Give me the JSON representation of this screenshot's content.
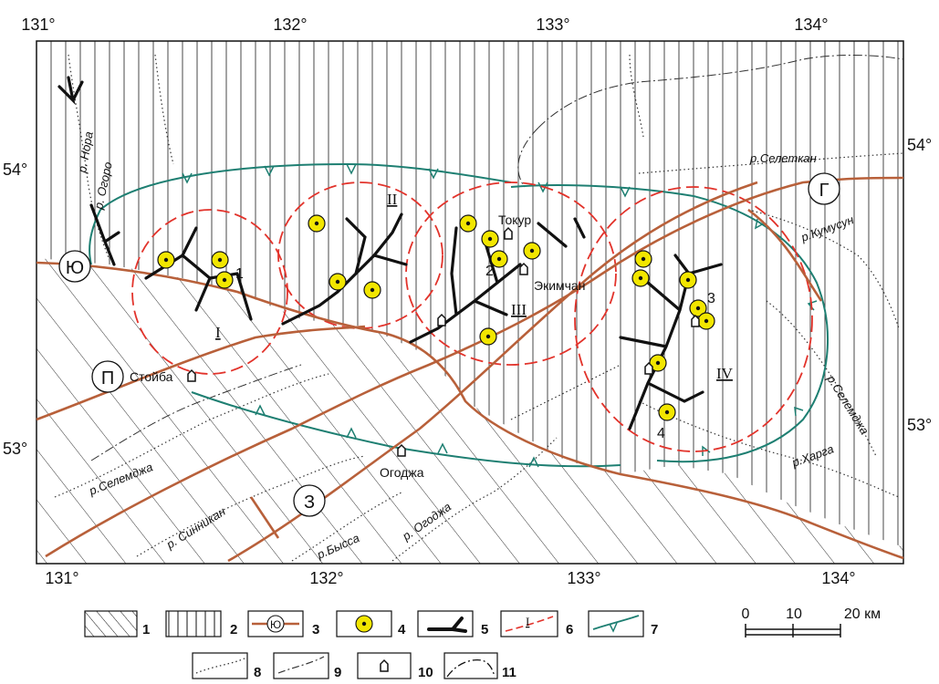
{
  "colors": {
    "fault": "#b8603a",
    "zone_red": "#e2332b",
    "zone_green": "#1e7f72",
    "deposit": "#f2e600",
    "vein": "#111111",
    "frame": "#111111"
  },
  "coords": {
    "lon_top": [
      "131°",
      "132°",
      "133°",
      "134°"
    ],
    "lon_bottom": [
      "131°",
      "132°",
      "133°",
      "134°"
    ],
    "lat_left": [
      "54°",
      "53°"
    ],
    "lat_right": [
      "54°",
      "53°"
    ]
  },
  "blocks": {
    "yu": "Ю",
    "p": "П",
    "z": "З",
    "g": "Г"
  },
  "rivers": {
    "nora": "р. Нора",
    "ogoro": "р. Огоро",
    "seletkan": "р.Селеткан",
    "kumusun": "р.Кумусун",
    "selemdzha_e": "р.Селемджа",
    "selemdzha_w": "р.Селемджа",
    "kharga": "р.Харга",
    "sinnikan": "р. Синникан",
    "byssa": "р.Бысса",
    "ogodzha": "р. Огоджа"
  },
  "settlements": {
    "tokur": "Токур",
    "ekimchan": "Экимчан",
    "stoyba": "Стойба",
    "ogodzha": "Огоджа"
  },
  "zones": {
    "z1": "I",
    "z2": "II",
    "z3": "III",
    "z4": "IV"
  },
  "points": {
    "p1": "1",
    "p2": "2",
    "p3": "3",
    "p4": "4"
  },
  "legend": {
    "items": [
      "1",
      "2",
      "3",
      "4",
      "5",
      "6",
      "7",
      "8",
      "9",
      "10",
      "11"
    ],
    "sample_yu": "Ю",
    "sample_roman": "I"
  },
  "scale": {
    "t0": "0",
    "t10": "10",
    "t20": "20 км"
  }
}
